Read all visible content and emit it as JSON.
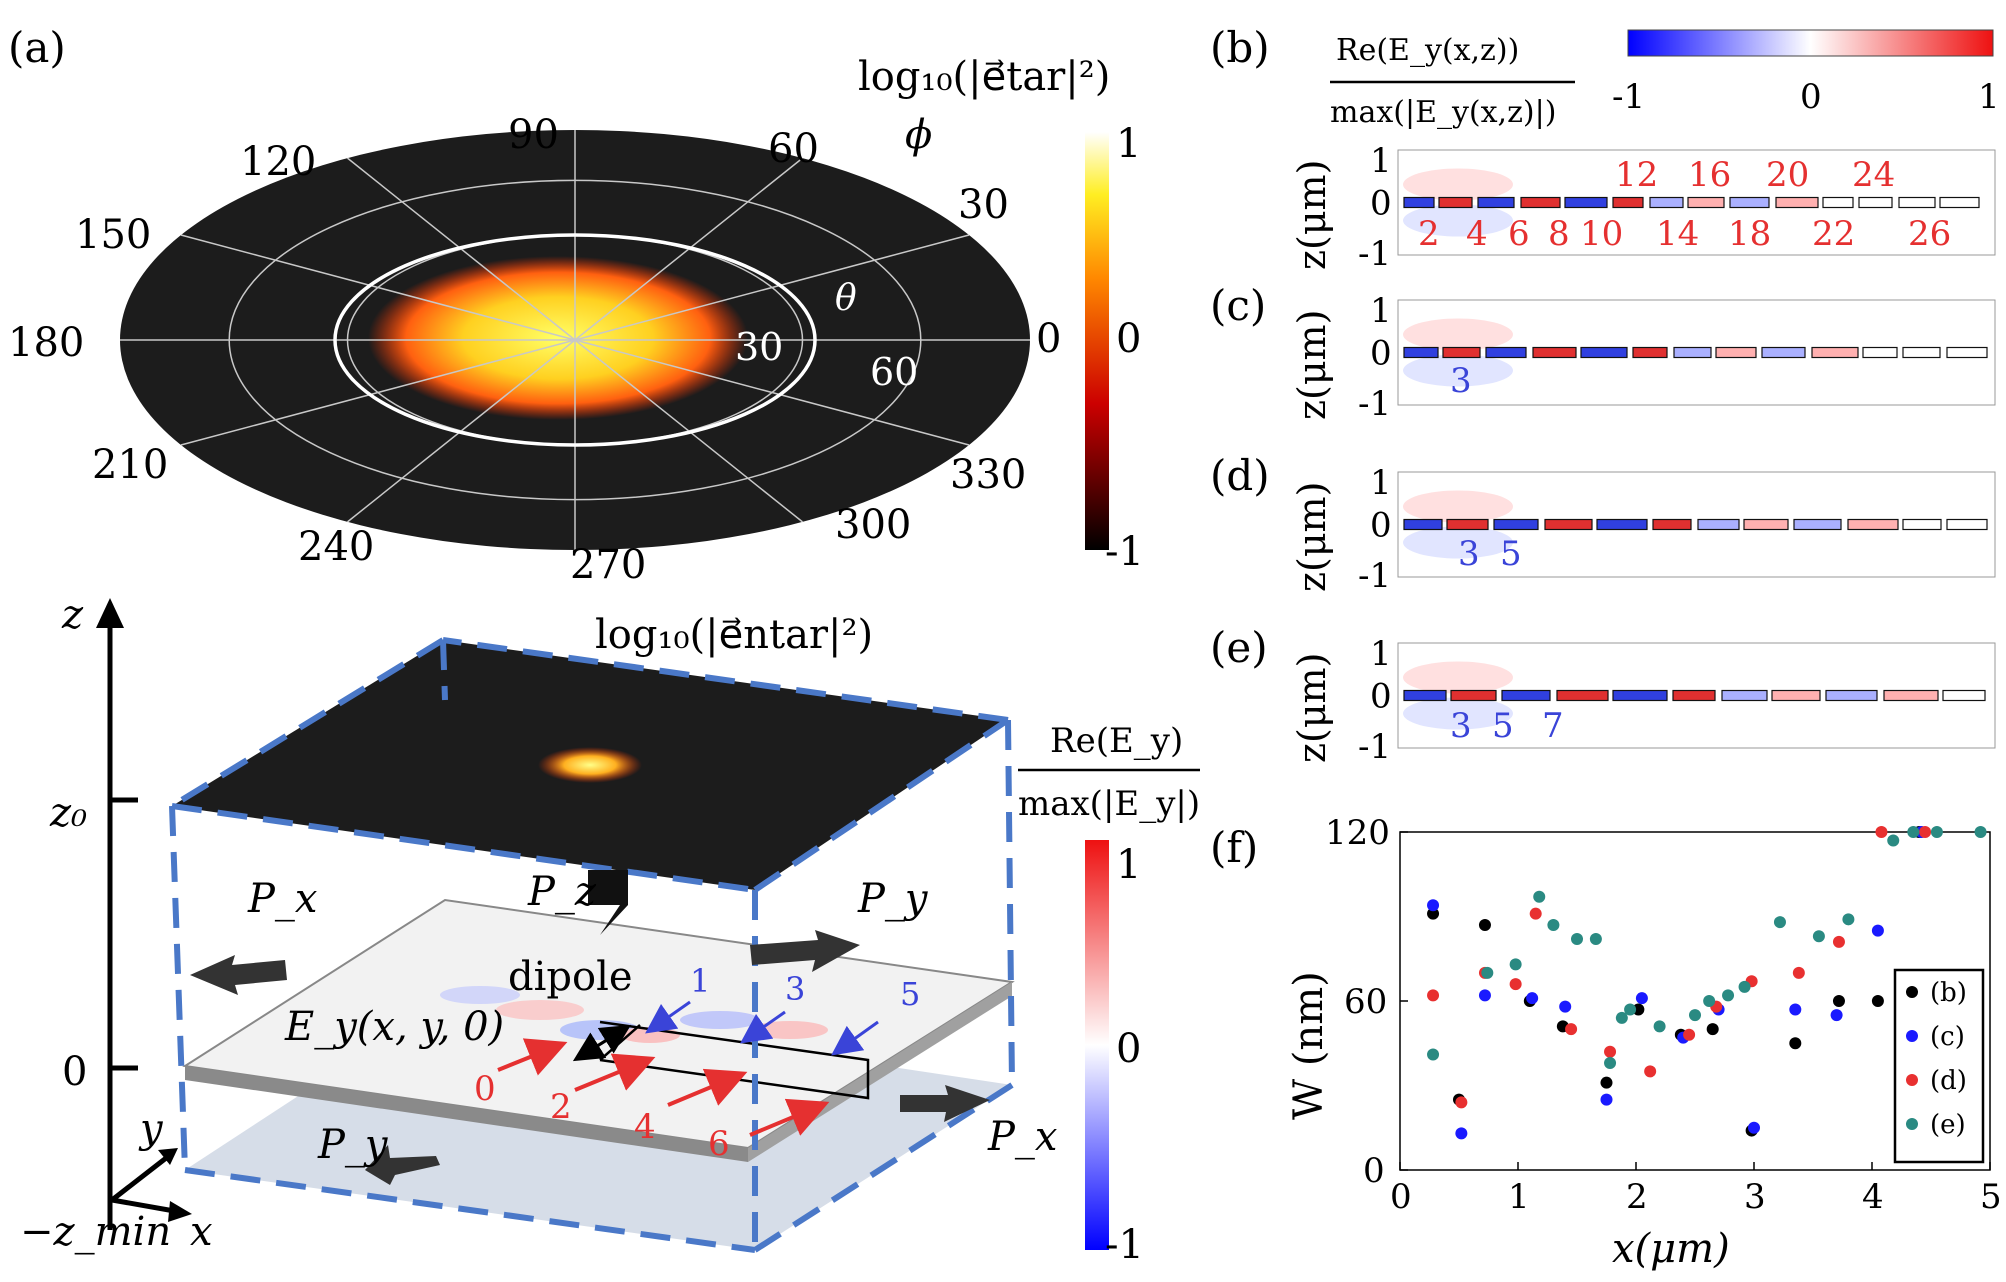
{
  "panels": {
    "a": "(a)",
    "b": "(b)",
    "c": "(c)",
    "d": "(d)",
    "e": "(e)",
    "f": "(f)"
  },
  "polar": {
    "colorbar_title": "log₁₀(|e⃗tar|²)",
    "phi_symbol": "ϕ",
    "theta_symbol": "θ",
    "phi_labels": [
      "0",
      "30",
      "60",
      "90",
      "120",
      "150",
      "180",
      "210",
      "240",
      "270",
      "300",
      "330"
    ],
    "theta_labels": [
      "30",
      "60"
    ],
    "colorbar_ticks": [
      "1",
      "0",
      "-1"
    ],
    "colors": {
      "disk": "#1c1c1c",
      "grid": "#c8c8c8",
      "ring": "#ffffff"
    }
  },
  "scheme": {
    "title": "log₁₀(|e⃗ntar|²)",
    "axis_z": "z",
    "axis_y": "y",
    "axis_x": "x",
    "z0": "z₀",
    "zero": "0",
    "zmin": "−z_min",
    "dipole": "dipole",
    "field_label": "E_y(x, y, 0)",
    "flux": {
      "px": "P_x",
      "py": "P_y",
      "pz": "P_z"
    },
    "red_indices": [
      "0",
      "2",
      "4",
      "6"
    ],
    "blue_indices": [
      "1",
      "3",
      "5"
    ],
    "colorbar_num": "Re(E_y)",
    "colorbar_den": "max(|E_y|)",
    "colorbar_ticks": [
      "1",
      "0",
      "-1"
    ],
    "colors": {
      "dash": "#4a78c8",
      "red": "#e53030",
      "blue": "#3a44d8"
    }
  },
  "field_maps": {
    "colorbar_num": "Re(E_y(x,z))",
    "colorbar_den": "max(|E_y(x,z)|)",
    "colorbar_ticks": [
      "-1",
      "0",
      "1"
    ],
    "ylabel": "z(μm)",
    "yticks": [
      "1",
      "0",
      "-1"
    ],
    "b_top": [
      "12",
      "16",
      "20",
      "24"
    ],
    "b_bottom": [
      "2",
      "4",
      "6",
      "8",
      "10",
      "14",
      "18",
      "22",
      "26"
    ],
    "c_labels": [
      "3"
    ],
    "d_labels": [
      "3",
      "5"
    ],
    "e_labels": [
      "3",
      "5",
      "7"
    ]
  },
  "chart_data": {
    "type": "scatter",
    "xlabel": "x(μm)",
    "ylabel": "W (nm)",
    "xlim": [
      0,
      5
    ],
    "ylim": [
      0,
      120
    ],
    "xticks": [
      "0",
      "1",
      "2",
      "3",
      "4",
      "5"
    ],
    "yticks": [
      "0",
      "60",
      "120"
    ],
    "legend_position": "right",
    "series": [
      {
        "name": "(b)",
        "color": "#000000",
        "points": [
          [
            0.28,
            91
          ],
          [
            0.5,
            25
          ],
          [
            0.72,
            87
          ],
          [
            1.1,
            60
          ],
          [
            1.38,
            51
          ],
          [
            1.75,
            31
          ],
          [
            2.02,
            57
          ],
          [
            2.38,
            48
          ],
          [
            2.65,
            50
          ],
          [
            2.98,
            14
          ],
          [
            3.35,
            45
          ],
          [
            3.72,
            60
          ],
          [
            4.05,
            60
          ],
          [
            4.4,
            120
          ]
        ]
      },
      {
        "name": "(c)",
        "color": "#1a1aff",
        "points": [
          [
            0.28,
            94
          ],
          [
            0.52,
            13
          ],
          [
            0.72,
            62
          ],
          [
            1.12,
            61
          ],
          [
            1.4,
            58
          ],
          [
            1.75,
            25
          ],
          [
            2.05,
            61
          ],
          [
            2.4,
            47
          ],
          [
            2.7,
            57
          ],
          [
            3.0,
            15
          ],
          [
            3.35,
            57
          ],
          [
            3.7,
            55
          ],
          [
            4.05,
            85
          ],
          [
            4.42,
            120
          ]
        ]
      },
      {
        "name": "(d)",
        "color": "#e83030",
        "points": [
          [
            0.28,
            62
          ],
          [
            0.52,
            24
          ],
          [
            0.72,
            70
          ],
          [
            0.98,
            66
          ],
          [
            1.15,
            91
          ],
          [
            1.45,
            50
          ],
          [
            1.78,
            42
          ],
          [
            2.12,
            35
          ],
          [
            2.45,
            48
          ],
          [
            2.68,
            58
          ],
          [
            2.98,
            67
          ],
          [
            3.38,
            70
          ],
          [
            3.72,
            81
          ],
          [
            4.08,
            120
          ],
          [
            4.45,
            120
          ]
        ]
      },
      {
        "name": "(e)",
        "color": "#2a8a82",
        "points": [
          [
            0.28,
            41
          ],
          [
            0.74,
            70
          ],
          [
            0.98,
            73
          ],
          [
            1.18,
            97
          ],
          [
            1.3,
            87
          ],
          [
            1.5,
            82
          ],
          [
            1.66,
            82
          ],
          [
            1.78,
            38
          ],
          [
            1.88,
            54
          ],
          [
            1.95,
            57
          ],
          [
            2.2,
            51
          ],
          [
            2.5,
            55
          ],
          [
            2.62,
            60
          ],
          [
            2.78,
            62
          ],
          [
            2.92,
            65
          ],
          [
            3.22,
            88
          ],
          [
            3.55,
            83
          ],
          [
            3.8,
            89
          ],
          [
            4.18,
            117
          ],
          [
            4.35,
            120
          ],
          [
            4.55,
            120
          ],
          [
            4.92,
            120
          ]
        ]
      }
    ]
  }
}
